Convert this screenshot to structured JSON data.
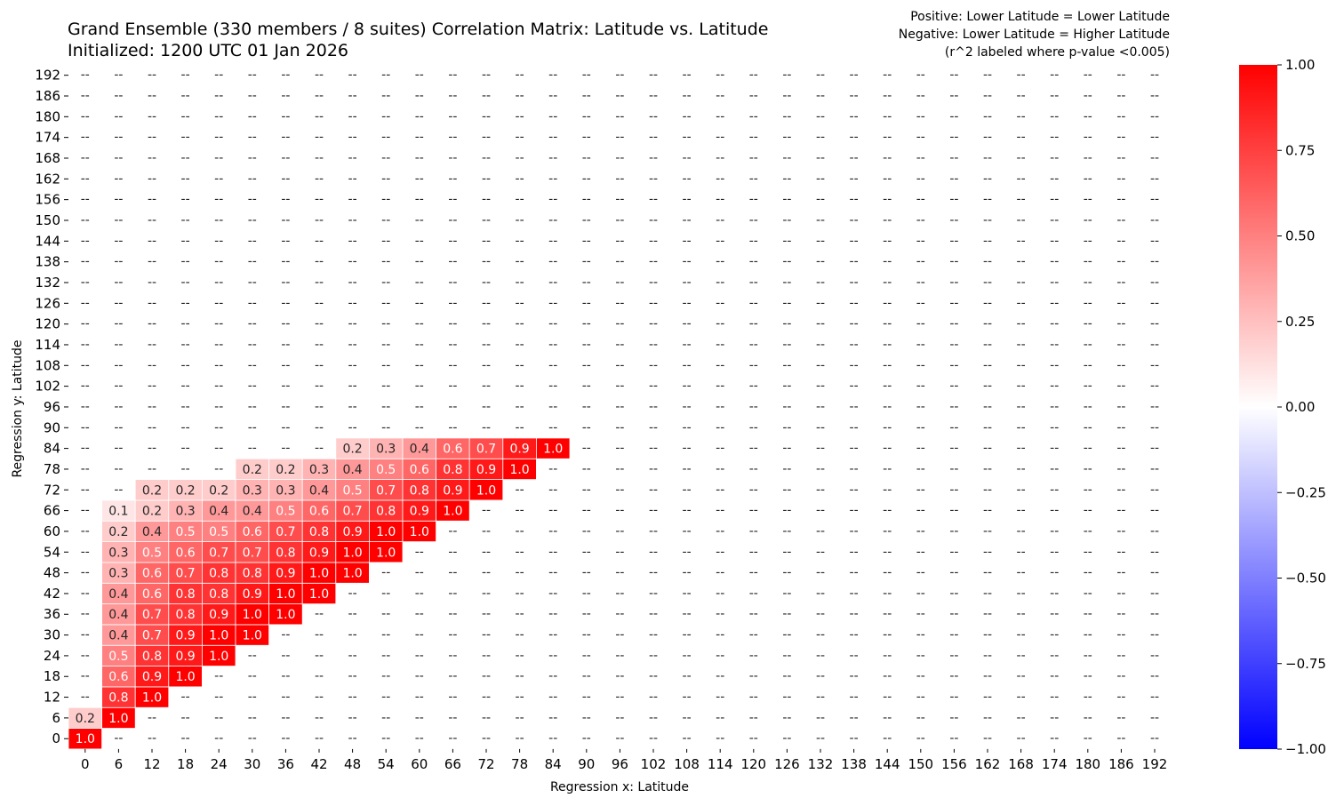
{
  "chart_data": {
    "type": "heatmap",
    "title": "Grand Ensemble (330 members / 8 suites) Correlation Matrix: Latitude vs. Latitude",
    "subtitle": "Initialized: 1200 UTC 01 Jan 2026",
    "notes": [
      "Positive: Lower Latitude = Lower Latitude",
      "Negative: Lower Latitude = Higher Latitude",
      "(r^2 labeled where p-value <0.005)"
    ],
    "xlabel": "Regression x: Latitude",
    "ylabel": "Regression y: Latitude",
    "x_categories": [
      "0",
      "6",
      "12",
      "18",
      "24",
      "30",
      "36",
      "42",
      "48",
      "54",
      "60",
      "66",
      "72",
      "78",
      "84",
      "90",
      "96",
      "102",
      "108",
      "114",
      "120",
      "126",
      "132",
      "138",
      "144",
      "150",
      "156",
      "162",
      "168",
      "174",
      "180",
      "186",
      "192"
    ],
    "y_categories": [
      "0",
      "6",
      "12",
      "18",
      "24",
      "30",
      "36",
      "42",
      "48",
      "54",
      "60",
      "66",
      "72",
      "78",
      "84",
      "90",
      "96",
      "102",
      "108",
      "114",
      "120",
      "126",
      "132",
      "138",
      "144",
      "150",
      "156",
      "162",
      "168",
      "174",
      "180",
      "186",
      "192"
    ],
    "missing_label": "--",
    "colorbar": {
      "range": [
        -1.0,
        1.0
      ],
      "ticks": [
        "1.00",
        "0.75",
        "0.50",
        "0.25",
        "0.00",
        "−0.25",
        "−0.50",
        "−0.75",
        "−1.00"
      ],
      "colors": {
        "negative": "#0000ff",
        "zero": "#ffffff",
        "positive": "#ff0000"
      }
    },
    "rows": [
      [
        "1.0"
      ],
      [
        "0.2",
        "1.0"
      ],
      [
        null,
        "0.8",
        "1.0"
      ],
      [
        null,
        "0.6",
        "0.9",
        "1.0"
      ],
      [
        null,
        "0.5",
        "0.8",
        "0.9",
        "1.0"
      ],
      [
        null,
        "0.4",
        "0.7",
        "0.9",
        "1.0",
        "1.0"
      ],
      [
        null,
        "0.4",
        "0.7",
        "0.8",
        "0.9",
        "1.0",
        "1.0"
      ],
      [
        null,
        "0.4",
        "0.6",
        "0.8",
        "0.8",
        "0.9",
        "1.0",
        "1.0"
      ],
      [
        null,
        "0.3",
        "0.6",
        "0.7",
        "0.8",
        "0.8",
        "0.9",
        "1.0",
        "1.0"
      ],
      [
        null,
        "0.3",
        "0.5",
        "0.6",
        "0.7",
        "0.7",
        "0.8",
        "0.9",
        "1.0",
        "1.0"
      ],
      [
        null,
        "0.2",
        "0.4",
        "0.5",
        "0.5",
        "0.6",
        "0.7",
        "0.8",
        "0.9",
        "1.0",
        "1.0"
      ],
      [
        null,
        "0.1",
        "0.2",
        "0.3",
        "0.4",
        "0.4",
        "0.5",
        "0.6",
        "0.7",
        "0.8",
        "0.9",
        "1.0"
      ],
      [
        null,
        null,
        "0.2",
        "0.2",
        "0.2",
        "0.3",
        "0.3",
        "0.4",
        "0.5",
        "0.7",
        "0.8",
        "0.9",
        "1.0"
      ],
      [
        null,
        null,
        null,
        null,
        null,
        "0.2",
        "0.2",
        "0.3",
        "0.4",
        "0.5",
        "0.6",
        "0.8",
        "0.9",
        "1.0"
      ],
      [
        null,
        null,
        null,
        null,
        null,
        null,
        null,
        null,
        "0.2",
        "0.3",
        "0.4",
        "0.6",
        "0.7",
        "0.9",
        "1.0"
      ]
    ]
  }
}
